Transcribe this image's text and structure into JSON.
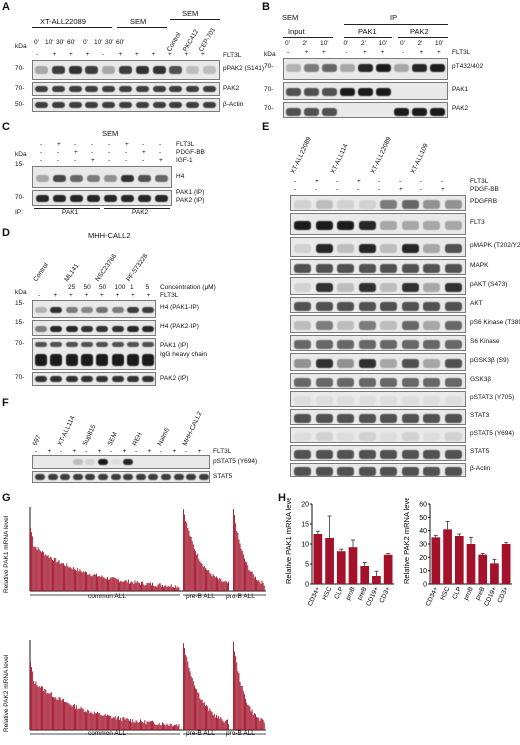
{
  "panels": {
    "A": {
      "letter": "A",
      "kda": "kDa",
      "groups": [
        "XT-ALL22089",
        "SEM",
        "SEM"
      ],
      "times": [
        "0'",
        "10'",
        "30'",
        "60'",
        "0'",
        "10'",
        "30'",
        "60'"
      ],
      "treat_labels": [
        "Control",
        "PKC412",
        "CEP-701"
      ],
      "flt3": [
        "-",
        "+",
        "+",
        "+",
        "-",
        "+",
        "+",
        "+",
        "+",
        "+",
        "+"
      ],
      "flt3_label": "FLT3L",
      "rows": [
        "pPAK2 (S141)",
        "PAK2",
        "β-Actin"
      ],
      "markers": [
        "70-",
        "70-",
        "50-"
      ]
    },
    "B": {
      "letter": "B",
      "sem": "SEM",
      "ip": "IP",
      "groups": [
        "Input",
        "PAK1",
        "PAK2"
      ],
      "times": [
        "0'",
        "2'",
        "10'",
        "0'",
        "2'",
        "10'",
        "0'",
        "2'",
        "10'"
      ],
      "flt3": [
        "-",
        "+",
        "+",
        "-",
        "+",
        "+",
        "-",
        "+",
        "+"
      ],
      "flt3_label": "FLT3L",
      "kda": "kDa",
      "rows": [
        "pT432/402",
        "PAK1",
        "PAK2"
      ],
      "markers": [
        "70-",
        "70-",
        "70-"
      ]
    },
    "C": {
      "letter": "C",
      "sem": "SEM",
      "kda": "kDa",
      "treat_rows": [
        "FLT3L",
        "PDGF-BB",
        "IGF-1"
      ],
      "treat_signs": [
        [
          "-",
          "+",
          "-",
          "-",
          "-",
          "+",
          "-",
          "-"
        ],
        [
          "-",
          "-",
          "+",
          "-",
          "-",
          "-",
          "+",
          "-"
        ],
        [
          "-",
          "-",
          "-",
          "+",
          "-",
          "-",
          "-",
          "+"
        ]
      ],
      "rows": [
        "H4",
        "PAK1 (IP)",
        "PAK2 (IP)"
      ],
      "markers": [
        "15-",
        "70-"
      ],
      "ip_label": "IP:",
      "ip_groups": [
        "PAK1",
        "PAK2"
      ]
    },
    "D": {
      "letter": "D",
      "cell_line": "MHH-CALL2",
      "groups": [
        "Control",
        "ML141",
        "NSC23766",
        "PF-573228"
      ],
      "conc_label": "Concentration (μM)",
      "conc": [
        "25",
        "50",
        "50",
        "100",
        "1",
        "5"
      ],
      "flt3_label": "FLT3L",
      "flt3": [
        "-",
        "+",
        "+",
        "+",
        "+",
        "+",
        "+",
        "+"
      ],
      "kda": "kDa",
      "rows": [
        "H4 (PAK1-IP)",
        "H4 (PAK2-IP)",
        "PAK1 (IP)",
        "IgG heavy chain",
        "PAK2 (IP)"
      ],
      "markers": [
        "15-",
        "15-",
        "70-",
        "70-"
      ]
    },
    "E": {
      "letter": "E",
      "groups": [
        "XT-ALL22089",
        "XT-ALL114",
        "XT-ALL22089",
        "XT-ALL109"
      ],
      "flt3_label": "FLT3L",
      "pdgf_label": "PDGF-BB",
      "flt3": [
        "-",
        "+",
        "-",
        "+",
        "-",
        "-",
        "-",
        "-"
      ],
      "pdgf": [
        "-",
        "-",
        "-",
        "-",
        "-",
        "+",
        "-",
        "+"
      ],
      "rows": [
        "PDGFRB",
        "FLT3",
        "pMAPK (T202/Y204)",
        "MAPK",
        "pAKT (S473)",
        "AKT",
        "pS6 Kinase (T389)",
        "S6 Kinase",
        "pGSK3β (S9)",
        "GSK3β",
        "pSTAT3 (Y705)",
        "STAT3",
        "pSTAT5 (Y694)",
        "STAT5",
        "β-Actin"
      ]
    },
    "F": {
      "letter": "F",
      "lines": [
        "697",
        "XT-ALL114",
        "Sup815",
        "SEM",
        "REH",
        "Nalm6",
        "MHH-CALL2"
      ],
      "flt3_label": "FLT3L",
      "flt3": [
        "-",
        "+",
        "-",
        "+",
        "-",
        "+",
        "-",
        "+",
        "-",
        "+",
        "-",
        "+",
        "-",
        "+"
      ],
      "rows": [
        "pSTAT5 (Y694)",
        "STAT5"
      ]
    },
    "G": {
      "letter": "G",
      "top_ylabel": "Relative PAK1 mRNA level",
      "bottom_ylabel": "Relative PAK2 mRNA level",
      "groups": [
        "common ALL",
        "pre-B ALL",
        "pro-B ALL"
      ]
    },
    "H": {
      "letter": "H"
    }
  },
  "chart_data": [
    {
      "type": "bar",
      "title": "",
      "ylabel": "Relative PAK1 mRNA level",
      "categories": [
        "CD34+",
        "HSC",
        "CLP",
        "proB",
        "preB",
        "CD19+",
        "CD3+"
      ],
      "values": [
        12.5,
        11.5,
        8.2,
        9.2,
        4.5,
        2.0,
        7.3
      ],
      "errors": [
        0.7,
        5.5,
        0.5,
        1.8,
        0.9,
        1.2,
        0.3
      ],
      "ylim": [
        0,
        20
      ],
      "yticks": [
        0,
        5,
        10,
        15,
        20
      ],
      "color": "#a3122a"
    },
    {
      "type": "bar",
      "title": "",
      "ylabel": "Relative PAK2 mRNA level",
      "categories": [
        "CD34+",
        "HSC",
        "CLP",
        "proB",
        "preB",
        "CD19+",
        "CD3+"
      ],
      "values": [
        35.0,
        41.0,
        36.0,
        30.0,
        22.0,
        15.5,
        30.0
      ],
      "errors": [
        1.5,
        6.0,
        1.5,
        5.0,
        1.0,
        3.0,
        1.0
      ],
      "ylim": [
        0,
        60
      ],
      "yticks": [
        0,
        10,
        20,
        30,
        40,
        50,
        60
      ],
      "color": "#a3122a"
    }
  ],
  "colors": {
    "bar": "#a3122a",
    "band": "#111111",
    "blot_bg": "#e9e9e9"
  }
}
